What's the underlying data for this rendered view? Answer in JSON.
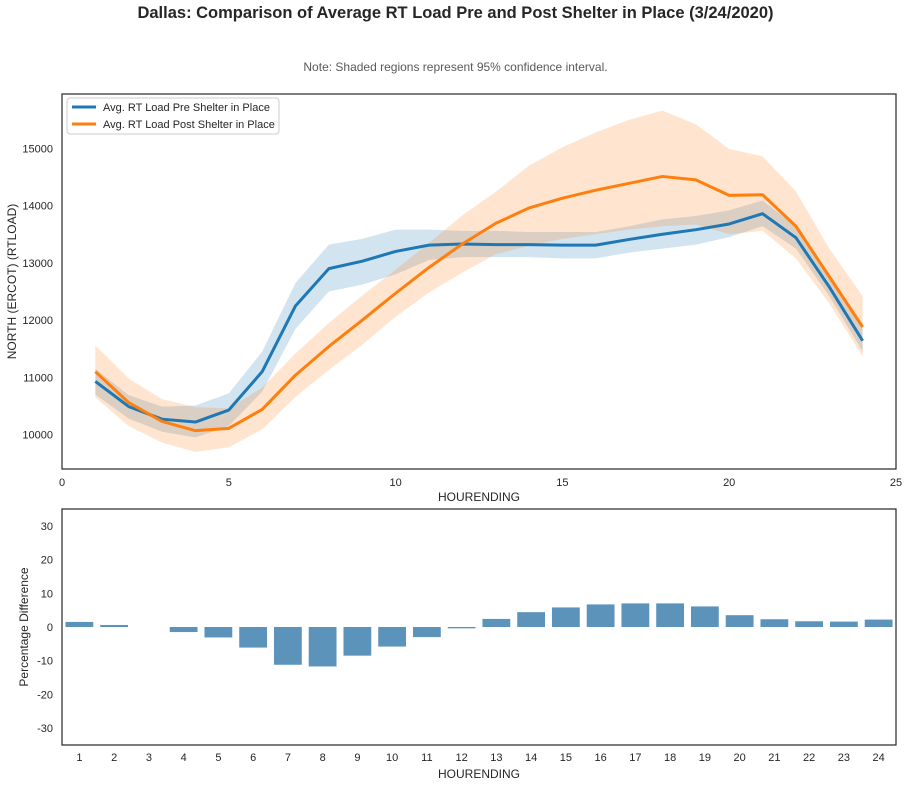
{
  "figure": {
    "title": "Dallas: Comparison of Average RT Load Pre and Post Shelter in Place (3/24/2020)",
    "note": "Note: Shaded regions represent 95% confidence interval."
  },
  "chart_data": [
    {
      "type": "line",
      "xlabel": "HOURENDING",
      "ylabel": "NORTH (ERCOT) (RTLOAD)",
      "xlim": [
        0,
        25
      ],
      "ylim": [
        9400,
        15950
      ],
      "xticks": [
        0,
        5,
        10,
        15,
        20,
        25
      ],
      "yticks": [
        10000,
        11000,
        12000,
        13000,
        14000,
        15000
      ],
      "grid": false,
      "legend_position": "upper-left",
      "x": [
        1,
        2,
        3,
        4,
        5,
        6,
        7,
        8,
        9,
        10,
        11,
        12,
        13,
        14,
        15,
        16,
        17,
        18,
        19,
        20,
        21,
        22,
        23,
        24
      ],
      "series": [
        {
          "name": "Avg. RT Load Pre Shelter in Place",
          "color": "#1f77b4",
          "values": [
            10930,
            10490,
            10270,
            10220,
            10430,
            11100,
            12250,
            12900,
            13030,
            13200,
            13310,
            13330,
            13320,
            13320,
            13310,
            13310,
            13410,
            13500,
            13580,
            13680,
            13860,
            13440,
            12580,
            11640
          ],
          "ci_low": [
            10700,
            10280,
            10050,
            9950,
            10150,
            10750,
            11850,
            12500,
            12620,
            12800,
            13050,
            13100,
            13100,
            13100,
            13080,
            13080,
            13180,
            13250,
            13320,
            13450,
            13640,
            13250,
            12420,
            11450
          ],
          "ci_high": [
            11150,
            10690,
            10490,
            10510,
            10720,
            11450,
            12650,
            13320,
            13420,
            13580,
            13580,
            13560,
            13560,
            13540,
            13540,
            13540,
            13640,
            13760,
            13820,
            13920,
            14090,
            13640,
            12760,
            11840
          ]
        },
        {
          "name": "Avg. RT Load Post Shelter in Place",
          "color": "#ff7f0e",
          "values": [
            11100,
            10560,
            10230,
            10070,
            10110,
            10440,
            11040,
            11540,
            12000,
            12470,
            12920,
            13330,
            13690,
            13960,
            14130,
            14270,
            14390,
            14510,
            14450,
            14180,
            14190,
            13640,
            12760,
            11880
          ],
          "ci_low": [
            10650,
            10150,
            9860,
            9700,
            9780,
            10090,
            10660,
            11130,
            11570,
            12060,
            12480,
            12830,
            13150,
            13300,
            13420,
            13500,
            13580,
            13640,
            13670,
            13500,
            13560,
            13080,
            12290,
            11370
          ],
          "ci_high": [
            11560,
            10980,
            10620,
            10480,
            10460,
            10820,
            11420,
            11950,
            12430,
            12880,
            13350,
            13830,
            14240,
            14700,
            15020,
            15280,
            15500,
            15660,
            15420,
            14990,
            14860,
            14250,
            13250,
            12420
          ]
        }
      ]
    },
    {
      "type": "bar",
      "xlabel": "HOURENDING",
      "ylabel": "Percentage Difference",
      "ylim": [
        -35,
        35
      ],
      "yticks": [
        -30,
        -20,
        -10,
        0,
        10,
        20,
        30
      ],
      "color": "#5b93bb",
      "categories": [
        "1",
        "2",
        "3",
        "4",
        "5",
        "6",
        "7",
        "8",
        "9",
        "10",
        "11",
        "12",
        "13",
        "14",
        "15",
        "16",
        "17",
        "18",
        "19",
        "20",
        "21",
        "22",
        "23",
        "24"
      ],
      "values": [
        1.5,
        0.6,
        0.0,
        -1.5,
        -3.1,
        -6.1,
        -11.2,
        -11.7,
        -8.5,
        -5.8,
        -3.0,
        -0.4,
        2.4,
        4.4,
        5.8,
        6.7,
        7.0,
        7.0,
        6.1,
        3.5,
        2.3,
        1.7,
        1.6,
        2.2
      ]
    }
  ]
}
